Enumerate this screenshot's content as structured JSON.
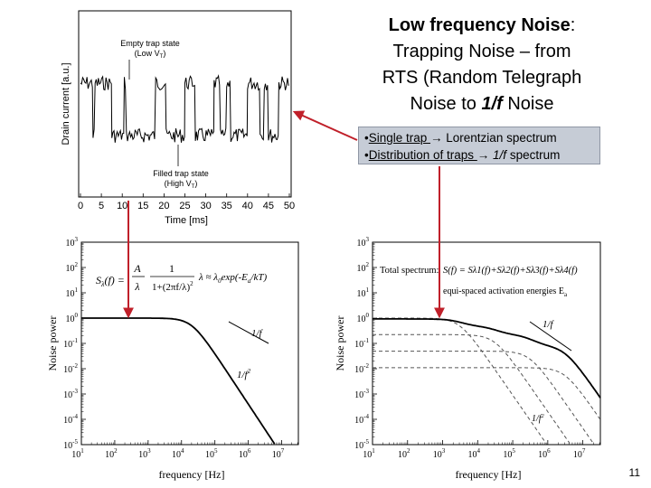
{
  "title": {
    "bold_part": "Low frequency Noise",
    "colon": ":",
    "line2": "Trapping Noise – from",
    "line3": "RTS (Random Telegraph",
    "line4_pre": "Noise to ",
    "line4_em": "1/f",
    "line4_post": " Noise"
  },
  "bullets": [
    {
      "marker": "•",
      "underlined": "Single trap ",
      "arrow": "→",
      "rest": " Lorentzian spectrum"
    },
    {
      "marker": "•",
      "underlined": "Distribution of traps ",
      "arrow": "→",
      "rest_em": " 1/f",
      "rest": " spectrum"
    }
  ],
  "rts_plot": {
    "ylabel": "Drain current [a.u.]",
    "xlabel": "Time [ms]",
    "xticks": [
      "0",
      "5",
      "10",
      "15",
      "20",
      "25",
      "30",
      "35",
      "40",
      "45",
      "50"
    ],
    "annot_empty_1": "Empty trap state",
    "annot_empty_2": "(Low V",
    "annot_empty_sub": "T",
    "annot_empty_end": ")",
    "annot_filled_1": "Filled trap state",
    "annot_filled_2": "(High V",
    "annot_filled_sub": "T",
    "annot_filled_end": ")"
  },
  "left_spectrum": {
    "ylabel": "Noise power",
    "xlabel": "frequency [Hz]",
    "yticks": [
      "10",
      "10",
      "10",
      "10",
      "10",
      "10",
      "10",
      "10",
      "10"
    ],
    "yexp": [
      "3",
      "2",
      "1",
      "0",
      "-1",
      "-2",
      "-3",
      "-4",
      "-5"
    ],
    "xexp": [
      "1",
      "2",
      "3",
      "4",
      "5",
      "6",
      "7"
    ],
    "formula_lhs": "S",
    "formula_sub": "λ",
    "formula_f": "(f) =",
    "formula_A": "A",
    "formula_lam": "λ",
    "formula_one": "1",
    "formula_den": "1+(2πf/λ)",
    "formula_sq": "2",
    "formula_rel": "λ ≈ λ",
    "formula_rel_sub": "0",
    "formula_exp": "exp(-E",
    "formula_exp_sub": "a",
    "formula_exp_end": "/kT)",
    "label_1f": "1/f",
    "label_1f2": "1/f",
    "label_1f2_sup": "2"
  },
  "right_spectrum": {
    "ylabel": "Noise power",
    "xlabel": "frequency [Hz]",
    "yexp": [
      "3",
      "2",
      "1",
      "0",
      "-1",
      "-2",
      "-3",
      "-4",
      "-5"
    ],
    "xexp": [
      "1",
      "2",
      "3",
      "4",
      "5",
      "6",
      "7"
    ],
    "total_label": "Total spectrum:",
    "total_formula": "S(f) = S",
    "total_terms": "λ1(f)+Sλ2(f)+Sλ3(f)+Sλ4(f)",
    "equi_label": "equi-spaced activation energies E",
    "equi_sub": "a",
    "label_1f": "1/f",
    "label_1f2": "1/f",
    "label_1f2_sup": "2"
  },
  "page_number": "11",
  "colors": {
    "arrow": "#c0202a",
    "bullet_box": "#c6ccd6"
  }
}
